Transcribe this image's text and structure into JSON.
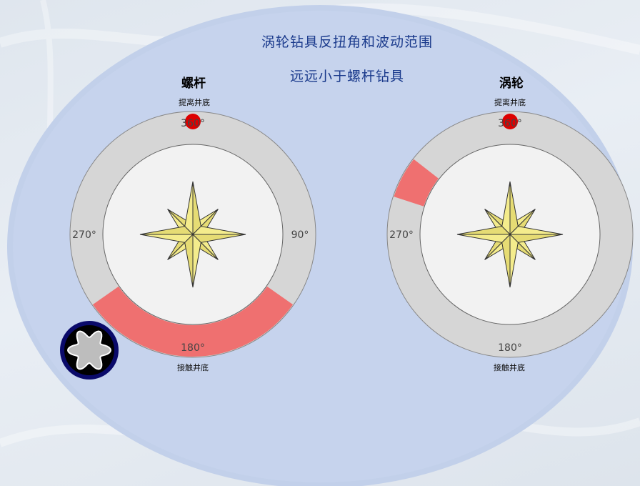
{
  "headline": {
    "line1": "涡轮钻具反扭角和波动范围",
    "line2": "远远小于螺杆钻具"
  },
  "gauges": [
    {
      "title": "螺杆",
      "top_caption": "提离井底",
      "bottom_caption": "接触井底",
      "labels": {
        "deg360": "360°",
        "deg90": "90°",
        "deg270": "270°",
        "deg180": "180°"
      },
      "reactive_torque_range_deg": [
        125,
        235
      ],
      "highlight_color": "#f06a6a"
    },
    {
      "title": "涡轮",
      "top_caption": "提离井底",
      "bottom_caption": "接触井底",
      "labels": {
        "deg360": "360°",
        "deg270": "270°",
        "deg180": "180°"
      },
      "reactive_torque_range_deg": [
        288,
        308
      ],
      "highlight_color": "#f06a6a"
    }
  ],
  "colors": {
    "ellipse": "#c2d0ea",
    "ring": "#d6d6d6",
    "face": "#f2f2f2",
    "star": "#f4ec8c",
    "marker": "#dd0000",
    "headline": "#1a3a8c"
  },
  "icons": [
    "compass-rose-icon",
    "rotor-cross-section-icon"
  ]
}
